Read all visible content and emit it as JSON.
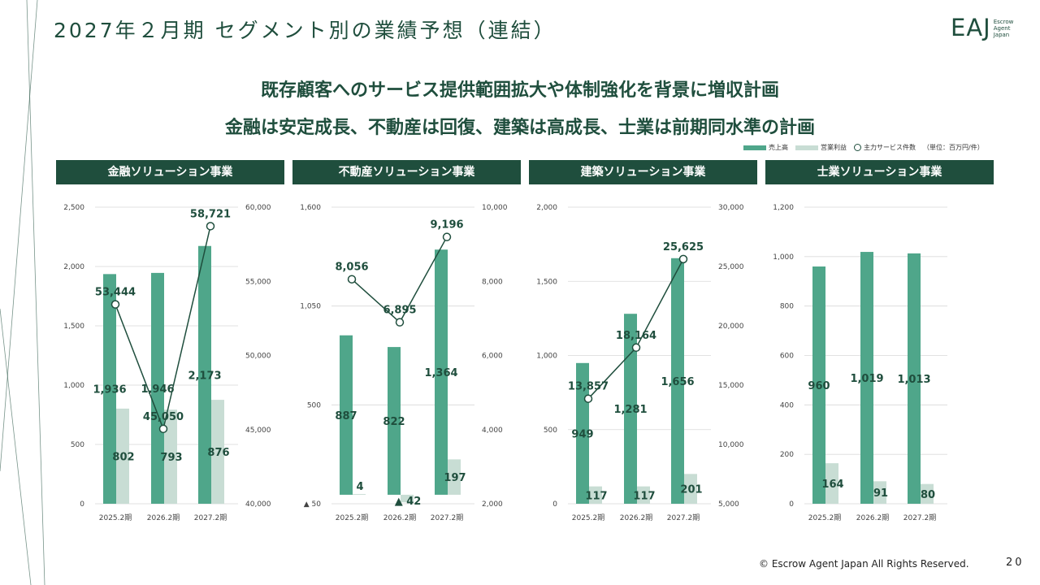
{
  "page": {
    "title": "2027年２月期 セグメント別の業績予想（連結）",
    "headline1": "既存顧客へのサービス提供範囲拡大や体制強化を背景に増収計画",
    "headline2": "金融は安定成長、不動産は回復、建築は高成長、士業は前期同水準の計画",
    "footer": "© Escrow Agent Japan All Rights Reserved.",
    "page_number": "20",
    "logo": {
      "mark": "EAJ",
      "line1": "Escrow",
      "line2": "Agent",
      "line3": "Japan"
    }
  },
  "legend": {
    "sales": "売上高",
    "op": "営業利益",
    "count": "主力サービス件数",
    "unit": "（単位：百万円/件）"
  },
  "colors": {
    "sales": "#4fa68a",
    "op": "#c8ddd4",
    "line": "#1f4e3d",
    "header": "#1f4e3d",
    "label": "#1f4e3d"
  },
  "chart_data": [
    {
      "type": "bar",
      "title": "金融ソリューション事業",
      "categories": [
        "2025.2期",
        "2026.2期",
        "2027.2期"
      ],
      "series": [
        {
          "name": "売上高",
          "values": [
            1936,
            1946,
            2173
          ],
          "labels": [
            "1,936",
            "1,946",
            "2,173"
          ]
        },
        {
          "name": "営業利益",
          "values": [
            802,
            793,
            876
          ],
          "labels": [
            "802",
            "793",
            "876"
          ]
        },
        {
          "name": "主力サービス件数",
          "axis": "right",
          "values": [
            53444,
            45050,
            58721
          ],
          "labels": [
            "53,444",
            "45,050",
            "58,721"
          ]
        }
      ],
      "ylim": [
        0,
        2500
      ],
      "yticks": [
        "0",
        "500",
        "1,000",
        "1,500",
        "2,000",
        "2,500"
      ],
      "y2lim": [
        40000,
        60000
      ],
      "y2ticks": [
        "40,000",
        "45,000",
        "50,000",
        "55,000",
        "60,000"
      ]
    },
    {
      "type": "bar",
      "title": "不動産ソリューション事業",
      "categories": [
        "2025.2期",
        "2026.2期",
        "2027.2期"
      ],
      "series": [
        {
          "name": "売上高",
          "values": [
            887,
            822,
            1364
          ],
          "labels": [
            "887",
            "822",
            "1,364"
          ]
        },
        {
          "name": "営業利益",
          "values": [
            4,
            -42,
            197
          ],
          "labels": [
            "4",
            "▲ 42",
            "197"
          ]
        },
        {
          "name": "主力サービス件数",
          "axis": "right",
          "values": [
            8056,
            6895,
            9196
          ],
          "labels": [
            "8,056",
            "6,895",
            "9,196"
          ]
        }
      ],
      "ylim": [
        -50,
        1600
      ],
      "yticks": [
        "▲ 50",
        "500",
        "1,050",
        "1,600"
      ],
      "y2lim": [
        2000,
        10000
      ],
      "y2ticks": [
        "2,000",
        "4,000",
        "6,000",
        "8,000",
        "10,000"
      ]
    },
    {
      "type": "bar",
      "title": "建築ソリューション事業",
      "categories": [
        "2025.2期",
        "2026.2期",
        "2027.2期"
      ],
      "series": [
        {
          "name": "売上高",
          "values": [
            949,
            1281,
            1656
          ],
          "labels": [
            "949",
            "1,281",
            "1,656"
          ]
        },
        {
          "name": "営業利益",
          "values": [
            117,
            117,
            201
          ],
          "labels": [
            "117",
            "117",
            "201"
          ]
        },
        {
          "name": "主力サービス件数",
          "axis": "right",
          "values": [
            13857,
            18164,
            25625
          ],
          "labels": [
            "13,857",
            "18,164",
            "25,625"
          ]
        }
      ],
      "ylim": [
        0,
        2000
      ],
      "yticks": [
        "0",
        "500",
        "1,000",
        "1,500",
        "2,000"
      ],
      "y2lim": [
        5000,
        30000
      ],
      "y2ticks": [
        "5,000",
        "10,000",
        "15,000",
        "20,000",
        "25,000",
        "30,000"
      ]
    },
    {
      "type": "bar",
      "title": "士業ソリューション事業",
      "categories": [
        "2025.2期",
        "2026.2期",
        "2027.2期"
      ],
      "series": [
        {
          "name": "売上高",
          "values": [
            960,
            1019,
            1013
          ],
          "labels": [
            "960",
            "1,019",
            "1,013"
          ]
        },
        {
          "name": "営業利益",
          "values": [
            164,
            91,
            80
          ],
          "labels": [
            "164",
            "91",
            "80"
          ]
        }
      ],
      "ylim": [
        0,
        1200
      ],
      "yticks": [
        "0",
        "200",
        "400",
        "600",
        "800",
        "1,000",
        "1,200"
      ]
    }
  ]
}
